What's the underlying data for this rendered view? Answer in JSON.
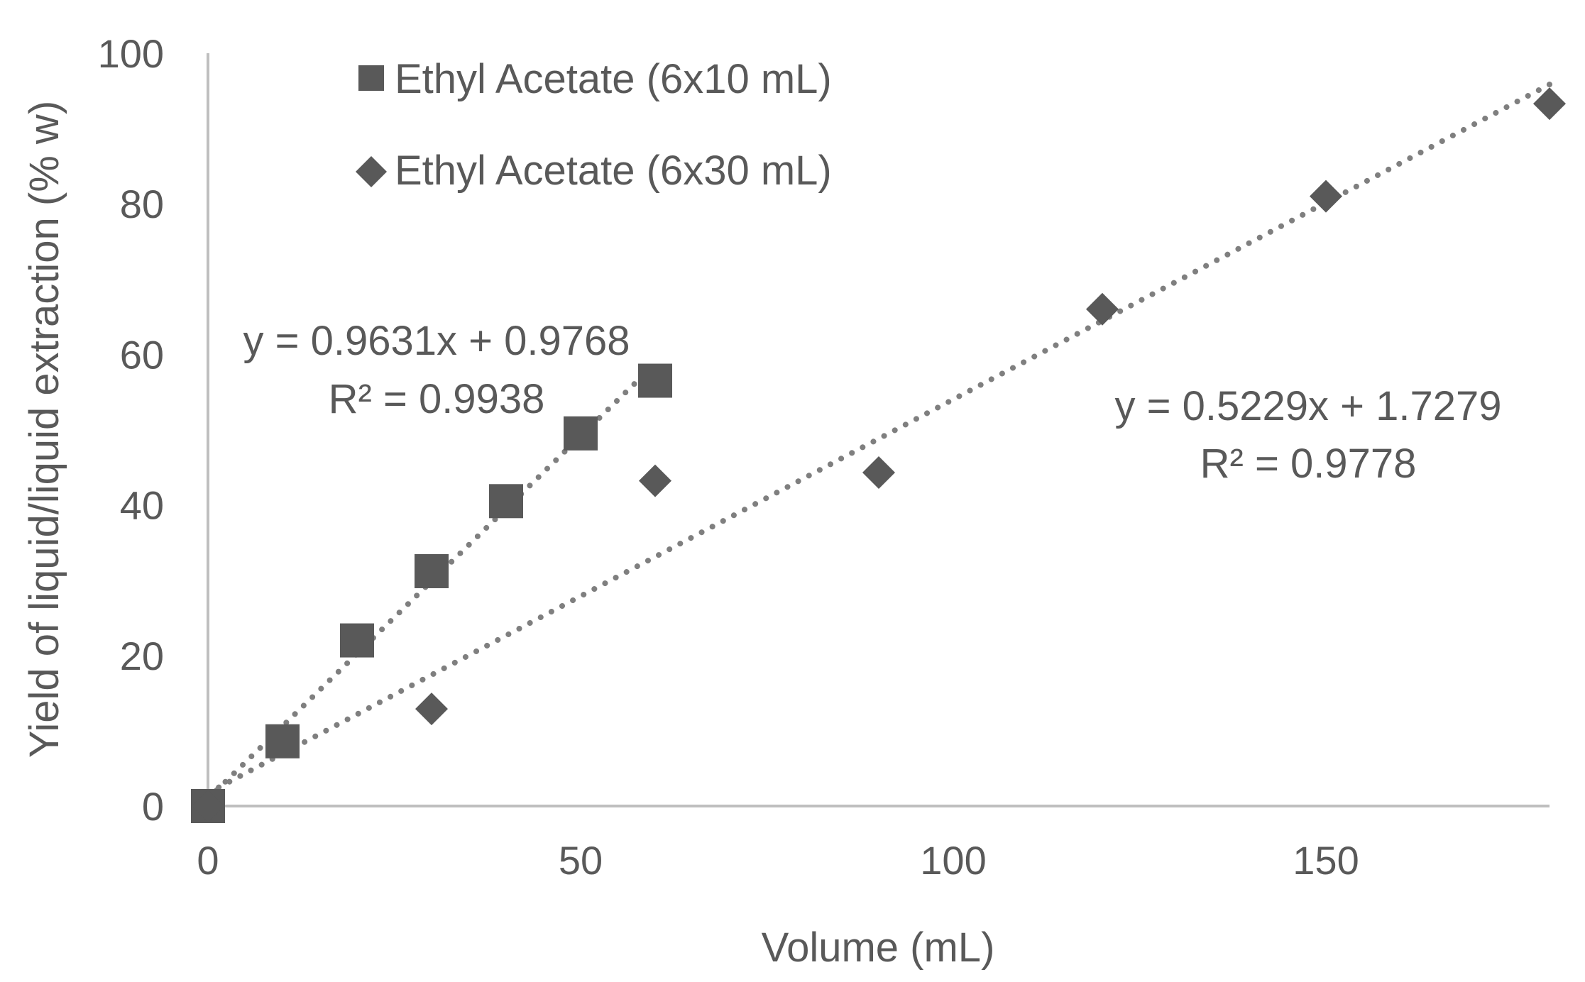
{
  "chart_data": {
    "type": "scatter",
    "title": "",
    "xlabel": "Volume (mL)",
    "ylabel": "Yield of liquid/liquid extraction (% w)",
    "xlim": [
      0,
      180
    ],
    "ylim": [
      0,
      100
    ],
    "xticks": [
      0,
      50,
      100,
      150
    ],
    "yticks": [
      0,
      20,
      40,
      60,
      80,
      100
    ],
    "x_tick_labels": [
      "0",
      "50",
      "100",
      "150"
    ],
    "y_tick_labels": [
      "0",
      "20",
      "40",
      "60",
      "80",
      "100"
    ],
    "grid": false,
    "legend_position": "top-left",
    "series": [
      {
        "name": "Ethyl Acetate (6x10 mL)",
        "marker": "square",
        "x": [
          0,
          10,
          20,
          30,
          40,
          50,
          60
        ],
        "y": [
          0,
          8.6,
          22.0,
          31.2,
          40.5,
          49.5,
          56.5
        ],
        "trendline": {
          "slope": 0.9631,
          "intercept": 0.9768,
          "x_range": [
            0,
            60
          ]
        },
        "equation": "y = 0.9631x + 0.9768",
        "r2": "R² = 0.9938"
      },
      {
        "name": "Ethyl Acetate (6x30 mL)",
        "marker": "diamond",
        "x": [
          0,
          30,
          60,
          90,
          120,
          150,
          180
        ],
        "y": [
          0,
          12.9,
          43.2,
          44.3,
          66.0,
          81.0,
          93.3
        ],
        "trendline": {
          "slope": 0.5229,
          "intercept": 1.7279,
          "x_range": [
            0,
            180
          ]
        },
        "equation": "y = 0.5229x + 1.7279",
        "r2": "R² = 0.9778"
      }
    ],
    "colors": {
      "marker": "#595959",
      "trendline": "#7f7f7f",
      "axis": "#bfbfbf",
      "text": "#595959"
    }
  }
}
